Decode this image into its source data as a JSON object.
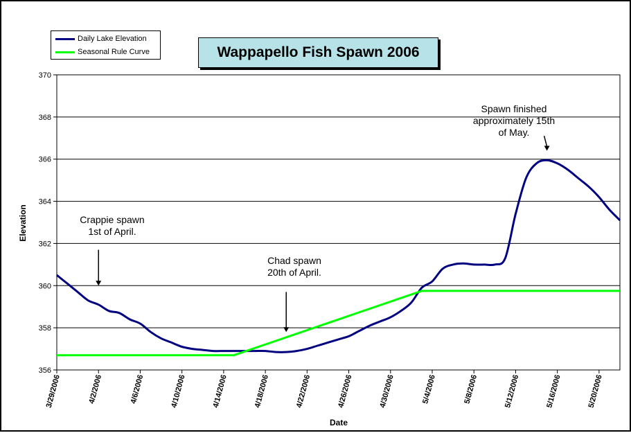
{
  "chart_data": {
    "type": "line",
    "title": "Wappapello Fish Spawn 2006",
    "xlabel": "Date",
    "ylabel": "Elevation",
    "ylim": [
      356,
      370
    ],
    "yticks": [
      356,
      358,
      360,
      362,
      364,
      366,
      368,
      370
    ],
    "x_start": "3/29/2006",
    "x_end": "5/22/2006",
    "xticks": [
      "3/29/2006",
      "4/2/2006",
      "4/6/2006",
      "4/10/2006",
      "4/14/2006",
      "4/18/2006",
      "4/22/2006",
      "4/26/2006",
      "4/30/2006",
      "5/4/2006",
      "5/8/2006",
      "5/12/2006",
      "5/16/2006",
      "5/20/2006"
    ],
    "grid": true,
    "legend_position": "top-left",
    "series": [
      {
        "name": "Daily Lake Elevation",
        "color": "#000080",
        "points": [
          [
            "3/29/2006",
            360.5
          ],
          [
            "3/30/2006",
            360.1
          ],
          [
            "3/31/2006",
            359.7
          ],
          [
            "4/1/2006",
            359.3
          ],
          [
            "4/2/2006",
            359.1
          ],
          [
            "4/3/2006",
            358.8
          ],
          [
            "4/4/2006",
            358.7
          ],
          [
            "4/5/2006",
            358.4
          ],
          [
            "4/6/2006",
            358.2
          ],
          [
            "4/7/2006",
            357.8
          ],
          [
            "4/8/2006",
            357.5
          ],
          [
            "4/9/2006",
            357.3
          ],
          [
            "4/10/2006",
            357.1
          ],
          [
            "4/11/2006",
            357.0
          ],
          [
            "4/12/2006",
            356.95
          ],
          [
            "4/13/2006",
            356.9
          ],
          [
            "4/14/2006",
            356.9
          ],
          [
            "4/15/2006",
            356.9
          ],
          [
            "4/16/2006",
            356.9
          ],
          [
            "4/17/2006",
            356.9
          ],
          [
            "4/18/2006",
            356.9
          ],
          [
            "4/19/2006",
            356.85
          ],
          [
            "4/20/2006",
            356.85
          ],
          [
            "4/21/2006",
            356.9
          ],
          [
            "4/22/2006",
            357.0
          ],
          [
            "4/23/2006",
            357.15
          ],
          [
            "4/24/2006",
            357.3
          ],
          [
            "4/25/2006",
            357.45
          ],
          [
            "4/26/2006",
            357.6
          ],
          [
            "4/27/2006",
            357.85
          ],
          [
            "4/28/2006",
            358.1
          ],
          [
            "4/29/2006",
            358.3
          ],
          [
            "4/30/2006",
            358.5
          ],
          [
            "5/1/2006",
            358.8
          ],
          [
            "5/2/2006",
            359.2
          ],
          [
            "5/3/2006",
            359.9
          ],
          [
            "5/4/2006",
            360.2
          ],
          [
            "5/5/2006",
            360.8
          ],
          [
            "5/6/2006",
            361.0
          ],
          [
            "5/7/2006",
            361.05
          ],
          [
            "5/8/2006",
            361.0
          ],
          [
            "5/9/2006",
            361.0
          ],
          [
            "5/10/2006",
            361.0
          ],
          [
            "5/11/2006",
            361.3
          ],
          [
            "5/12/2006",
            363.4
          ],
          [
            "5/13/2006",
            365.1
          ],
          [
            "5/14/2006",
            365.8
          ],
          [
            "5/15/2006",
            365.95
          ],
          [
            "5/16/2006",
            365.8
          ],
          [
            "5/17/2006",
            365.5
          ],
          [
            "5/18/2006",
            365.1
          ],
          [
            "5/19/2006",
            364.7
          ],
          [
            "5/20/2006",
            364.2
          ],
          [
            "5/21/2006",
            363.6
          ],
          [
            "5/22/2006",
            363.1
          ]
        ]
      },
      {
        "name": "Seasonal Rule Curve",
        "color": "#00ff00",
        "points": [
          [
            "3/29/2006",
            356.7
          ],
          [
            "4/15/2006",
            356.7
          ],
          [
            "5/3/2006",
            359.75
          ],
          [
            "5/22/2006",
            359.75
          ]
        ]
      }
    ],
    "annotations": [
      {
        "text": "Crappie spawn\n1st of April.",
        "arrow_date": "4/2/2006",
        "arrow_from": 361.7,
        "arrow_to": 360.0
      },
      {
        "text": "Chad spawn\n20th of April.",
        "arrow_date": "4/20/2006",
        "arrow_from": 359.7,
        "arrow_to": 357.8
      },
      {
        "text": "Spawn finished\napproximately 15th\nof May.",
        "arrow_date": "5/15/2006",
        "arrow_from": 367.1,
        "arrow_to": 366.4
      }
    ]
  }
}
